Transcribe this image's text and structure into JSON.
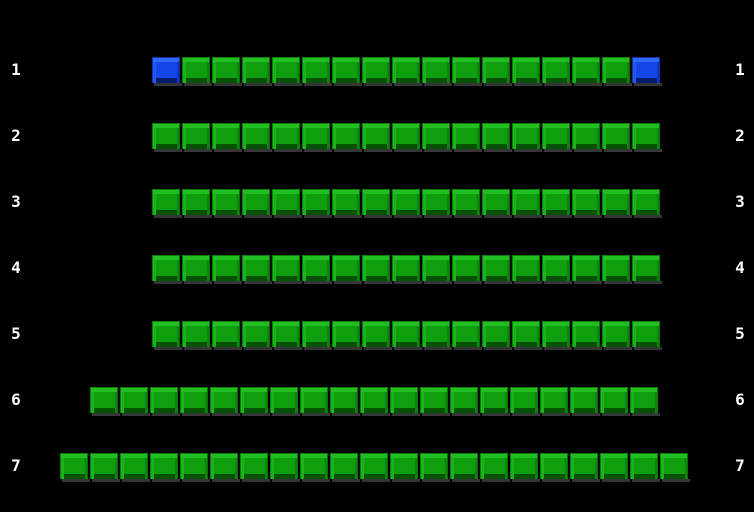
{
  "colors": {
    "background": "#000000",
    "green_seat": "#0e9e0e",
    "blue_seat": "#1546ec",
    "row_label": "#ffffff"
  },
  "seat_map": {
    "rows": [
      {
        "label": "1",
        "seats": [
          "blue",
          "green",
          "green",
          "green",
          "green",
          "green",
          "green",
          "green",
          "green",
          "green",
          "green",
          "green",
          "green",
          "green",
          "green",
          "green",
          "blue"
        ]
      },
      {
        "label": "2",
        "seats": [
          "green",
          "green",
          "green",
          "green",
          "green",
          "green",
          "green",
          "green",
          "green",
          "green",
          "green",
          "green",
          "green",
          "green",
          "green",
          "green",
          "green"
        ]
      },
      {
        "label": "3",
        "seats": [
          "green",
          "green",
          "green",
          "green",
          "green",
          "green",
          "green",
          "green",
          "green",
          "green",
          "green",
          "green",
          "green",
          "green",
          "green",
          "green",
          "green"
        ]
      },
      {
        "label": "4",
        "seats": [
          "green",
          "green",
          "green",
          "green",
          "green",
          "green",
          "green",
          "green",
          "green",
          "green",
          "green",
          "green",
          "green",
          "green",
          "green",
          "green",
          "green"
        ]
      },
      {
        "label": "5",
        "seats": [
          "green",
          "green",
          "green",
          "green",
          "green",
          "green",
          "green",
          "green",
          "green",
          "green",
          "green",
          "green",
          "green",
          "green",
          "green",
          "green",
          "green"
        ]
      },
      {
        "label": "6",
        "seats": [
          "green",
          "green",
          "green",
          "green",
          "green",
          "green",
          "green",
          "green",
          "green",
          "green",
          "green",
          "green",
          "green",
          "green",
          "green",
          "green",
          "green",
          "green",
          "green"
        ]
      },
      {
        "label": "7",
        "seats": [
          "green",
          "green",
          "green",
          "green",
          "green",
          "green",
          "green",
          "green",
          "green",
          "green",
          "green",
          "green",
          "green",
          "green",
          "green",
          "green",
          "green",
          "green",
          "green",
          "green",
          "green"
        ]
      }
    ]
  }
}
